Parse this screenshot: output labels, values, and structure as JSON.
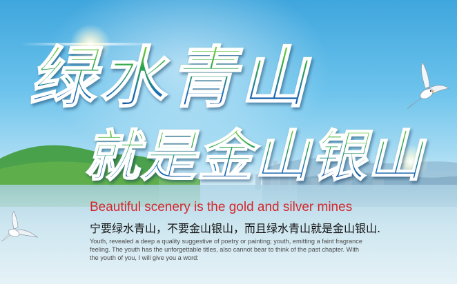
{
  "headline": {
    "line1": "绿水青山",
    "line2": "就是金山银山"
  },
  "subtitle_en": "Beautiful scenery is the gold and silver mines",
  "subtitle_cn": "宁要绿水青山，不要金山银山，而且绿水青山就是金山银山.",
  "body": {
    "lines": [
      "Youth, revealed a deep a quality suggestive of poetry or painting; youth, emitting a faint fragrance",
      "feeling. The youth has the unforgettable titles, also cannot bear to think of the past chapter. With",
      "the youth of you, I will give you a word:"
    ]
  },
  "colors": {
    "headline_top": "#8fdc3a",
    "headline_bottom": "#0e3f8a",
    "subtitle_en": "#d4262a",
    "subtitle_cn": "#111111",
    "body": "#4a4a4a",
    "sky": "#3fa6dd",
    "water": "#cfe6f0"
  },
  "icons": [
    "seagull-icon",
    "seagull-icon-small"
  ]
}
